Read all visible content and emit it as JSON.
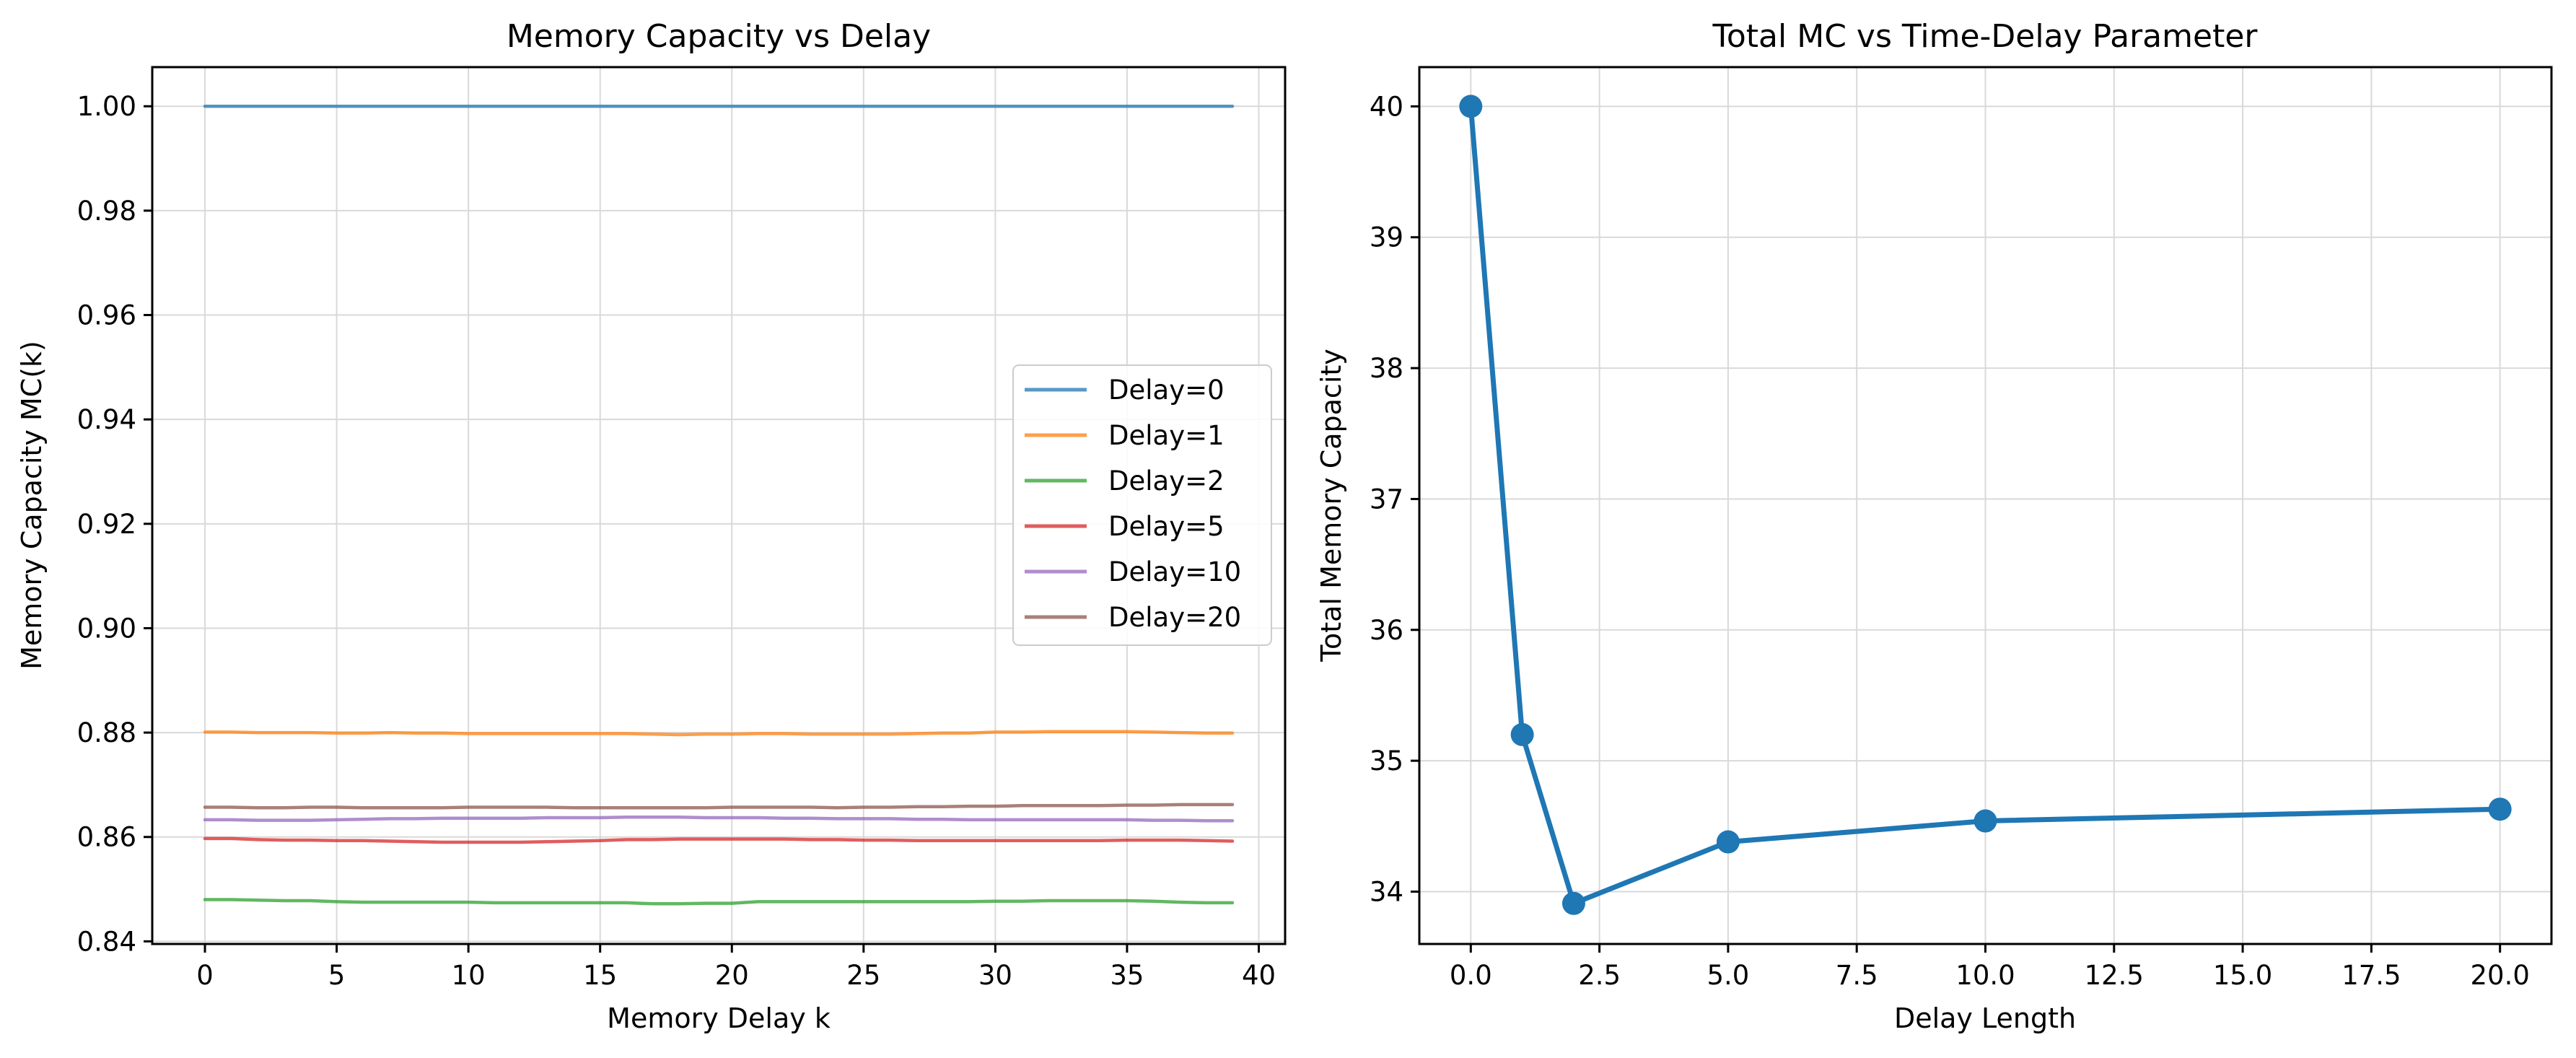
{
  "chart_data": [
    {
      "type": "line",
      "title": "Memory Capacity vs Delay",
      "xlabel": "Memory Delay k",
      "ylabel": "Memory Capacity MC(k)",
      "xlim": [
        -2,
        41
      ],
      "ylim": [
        0.8395,
        1.0075
      ],
      "xticks": [
        0,
        5,
        10,
        15,
        20,
        25,
        30,
        35,
        40
      ],
      "yticks": [
        0.84,
        0.86,
        0.88,
        0.9,
        0.92,
        0.94,
        0.96,
        0.98,
        1.0
      ],
      "ytick_labels": [
        "0.84",
        "0.86",
        "0.88",
        "0.90",
        "0.92",
        "0.94",
        "0.96",
        "0.98",
        "1.00"
      ],
      "grid": true,
      "legend_position": "center-right",
      "x": [
        0,
        1,
        2,
        3,
        4,
        5,
        6,
        7,
        8,
        9,
        10,
        11,
        12,
        13,
        14,
        15,
        16,
        17,
        18,
        19,
        20,
        21,
        22,
        23,
        24,
        25,
        26,
        27,
        28,
        29,
        30,
        31,
        32,
        33,
        34,
        35,
        36,
        37,
        38,
        39
      ],
      "series": [
        {
          "name": "Delay=0",
          "color": "#1f77b4",
          "values": [
            1.0,
            1.0,
            1.0,
            1.0,
            1.0,
            1.0,
            1.0,
            1.0,
            1.0,
            1.0,
            1.0,
            1.0,
            1.0,
            1.0,
            1.0,
            1.0,
            1.0,
            1.0,
            1.0,
            1.0,
            1.0,
            1.0,
            1.0,
            1.0,
            1.0,
            1.0,
            1.0,
            1.0,
            1.0,
            1.0,
            1.0,
            1.0,
            1.0,
            1.0,
            1.0,
            1.0,
            1.0,
            1.0,
            1.0,
            1.0
          ]
        },
        {
          "name": "Delay=1",
          "color": "#ff7f0e",
          "values": [
            0.8801,
            0.8801,
            0.88,
            0.88,
            0.88,
            0.8799,
            0.8799,
            0.88,
            0.8799,
            0.8799,
            0.8798,
            0.8798,
            0.8798,
            0.8798,
            0.8798,
            0.8798,
            0.8798,
            0.8797,
            0.8796,
            0.8797,
            0.8797,
            0.8798,
            0.8798,
            0.8797,
            0.8797,
            0.8797,
            0.8797,
            0.8798,
            0.8799,
            0.8799,
            0.8801,
            0.8801,
            0.8802,
            0.8802,
            0.8802,
            0.8802,
            0.8801,
            0.88,
            0.8799,
            0.8799
          ]
        },
        {
          "name": "Delay=2",
          "color": "#2ca02c",
          "values": [
            0.848,
            0.848,
            0.8479,
            0.8478,
            0.8478,
            0.8476,
            0.8475,
            0.8475,
            0.8475,
            0.8475,
            0.8475,
            0.8474,
            0.8474,
            0.8474,
            0.8474,
            0.8474,
            0.8474,
            0.8472,
            0.8472,
            0.8473,
            0.8473,
            0.8476,
            0.8476,
            0.8476,
            0.8476,
            0.8476,
            0.8476,
            0.8476,
            0.8476,
            0.8476,
            0.8477,
            0.8477,
            0.8478,
            0.8478,
            0.8478,
            0.8478,
            0.8477,
            0.8475,
            0.8474,
            0.8474
          ]
        },
        {
          "name": "Delay=5",
          "color": "#d62728",
          "values": [
            0.8597,
            0.8597,
            0.8595,
            0.8594,
            0.8594,
            0.8593,
            0.8593,
            0.8592,
            0.8591,
            0.859,
            0.859,
            0.859,
            0.859,
            0.8591,
            0.8592,
            0.8593,
            0.8595,
            0.8595,
            0.8596,
            0.8596,
            0.8596,
            0.8596,
            0.8596,
            0.8595,
            0.8595,
            0.8594,
            0.8594,
            0.8593,
            0.8593,
            0.8593,
            0.8593,
            0.8593,
            0.8593,
            0.8593,
            0.8593,
            0.8594,
            0.8594,
            0.8594,
            0.8593,
            0.8592
          ]
        },
        {
          "name": "Delay=10",
          "color": "#9467bd",
          "values": [
            0.8633,
            0.8633,
            0.8632,
            0.8632,
            0.8632,
            0.8633,
            0.8634,
            0.8635,
            0.8635,
            0.8636,
            0.8636,
            0.8636,
            0.8636,
            0.8637,
            0.8637,
            0.8637,
            0.8638,
            0.8638,
            0.8638,
            0.8637,
            0.8637,
            0.8637,
            0.8636,
            0.8636,
            0.8635,
            0.8635,
            0.8635,
            0.8634,
            0.8634,
            0.8633,
            0.8633,
            0.8633,
            0.8633,
            0.8633,
            0.8633,
            0.8633,
            0.8632,
            0.8632,
            0.8631,
            0.8631
          ]
        },
        {
          "name": "Delay=20",
          "color": "#8c564b",
          "values": [
            0.8657,
            0.8657,
            0.8656,
            0.8656,
            0.8657,
            0.8657,
            0.8656,
            0.8656,
            0.8656,
            0.8656,
            0.8657,
            0.8657,
            0.8657,
            0.8657,
            0.8656,
            0.8656,
            0.8656,
            0.8656,
            0.8656,
            0.8656,
            0.8657,
            0.8657,
            0.8657,
            0.8657,
            0.8656,
            0.8657,
            0.8657,
            0.8658,
            0.8658,
            0.8659,
            0.8659,
            0.866,
            0.866,
            0.866,
            0.866,
            0.8661,
            0.8661,
            0.8662,
            0.8662,
            0.8662
          ]
        }
      ]
    },
    {
      "type": "line",
      "title": "Total MC vs Time-Delay Parameter",
      "xlabel": "Delay Length",
      "ylabel": "Total Memory Capacity",
      "xlim": [
        -1,
        21
      ],
      "ylim": [
        33.6,
        40.3
      ],
      "xticks": [
        0.0,
        2.5,
        5.0,
        7.5,
        10.0,
        12.5,
        15.0,
        17.5,
        20.0
      ],
      "xtick_labels": [
        "0.0",
        "2.5",
        "5.0",
        "7.5",
        "10.0",
        "12.5",
        "15.0",
        "17.5",
        "20.0"
      ],
      "yticks": [
        34,
        35,
        36,
        37,
        38,
        39,
        40
      ],
      "grid": true,
      "marker": "circle",
      "series": [
        {
          "color": "#1f77b4",
          "x": [
            0,
            1,
            2,
            5,
            10,
            20
          ],
          "values": [
            40.0,
            35.2,
            33.91,
            34.38,
            34.54,
            34.63
          ]
        }
      ]
    }
  ]
}
